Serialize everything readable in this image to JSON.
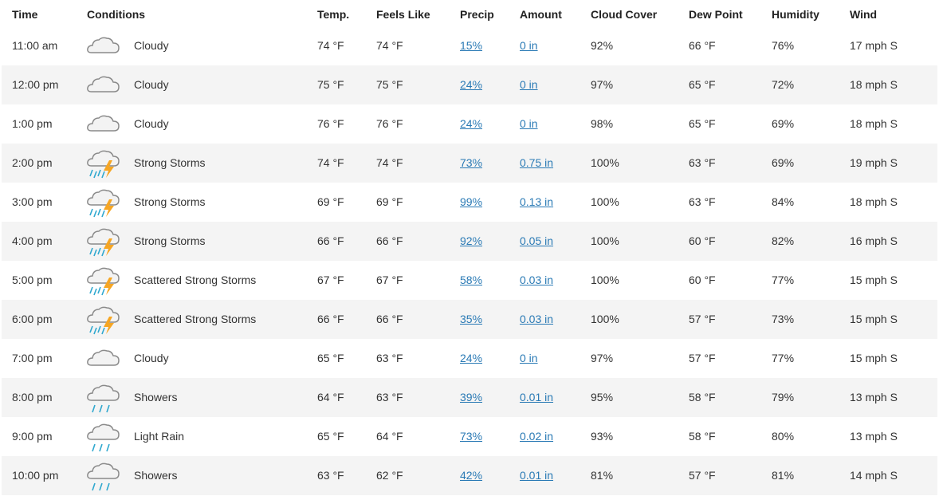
{
  "table": {
    "columns": [
      "Time",
      "Conditions",
      "Temp.",
      "Feels Like",
      "Precip",
      "Amount",
      "Cloud Cover",
      "Dew Point",
      "Humidity",
      "Wind"
    ],
    "rows": [
      [
        "11:00 am",
        "Cloudy",
        "74 °F",
        "74 °F",
        "15%",
        "0 in",
        "92%",
        "66 °F",
        "76%",
        "17 mph S"
      ],
      [
        "12:00 pm",
        "Cloudy",
        "75 °F",
        "75 °F",
        "24%",
        "0 in",
        "97%",
        "65 °F",
        "72%",
        "18 mph S"
      ],
      [
        "1:00 pm",
        "Cloudy",
        "76 °F",
        "76 °F",
        "24%",
        "0 in",
        "98%",
        "65 °F",
        "69%",
        "18 mph S"
      ],
      [
        "2:00 pm",
        "Strong Storms",
        "74 °F",
        "74 °F",
        "73%",
        "0.75 in",
        "100%",
        "63 °F",
        "69%",
        "19 mph S"
      ],
      [
        "3:00 pm",
        "Strong Storms",
        "69 °F",
        "69 °F",
        "99%",
        "0.13 in",
        "100%",
        "63 °F",
        "84%",
        "18 mph S"
      ],
      [
        "4:00 pm",
        "Strong Storms",
        "66 °F",
        "66 °F",
        "92%",
        "0.05 in",
        "100%",
        "60 °F",
        "82%",
        "16 mph S"
      ],
      [
        "5:00 pm",
        "Scattered Strong Storms",
        "67 °F",
        "67 °F",
        "58%",
        "0.03 in",
        "100%",
        "60 °F",
        "77%",
        "15 mph S"
      ],
      [
        "6:00 pm",
        "Scattered Strong Storms",
        "66 °F",
        "66 °F",
        "35%",
        "0.03 in",
        "100%",
        "57 °F",
        "73%",
        "15 mph S"
      ],
      [
        "7:00 pm",
        "Cloudy",
        "65 °F",
        "63 °F",
        "24%",
        "0 in",
        "97%",
        "57 °F",
        "77%",
        "15 mph S"
      ],
      [
        "8:00 pm",
        "Showers",
        "64 °F",
        "63 °F",
        "39%",
        "0.01 in",
        "95%",
        "58 °F",
        "79%",
        "13 mph S"
      ],
      [
        "9:00 pm",
        "Light Rain",
        "65 °F",
        "64 °F",
        "73%",
        "0.02 in",
        "93%",
        "58 °F",
        "80%",
        "13 mph S"
      ],
      [
        "10:00 pm",
        "Showers",
        "63 °F",
        "62 °F",
        "42%",
        "0.01 in",
        "81%",
        "57 °F",
        "81%",
        "14 mph S"
      ]
    ]
  }
}
